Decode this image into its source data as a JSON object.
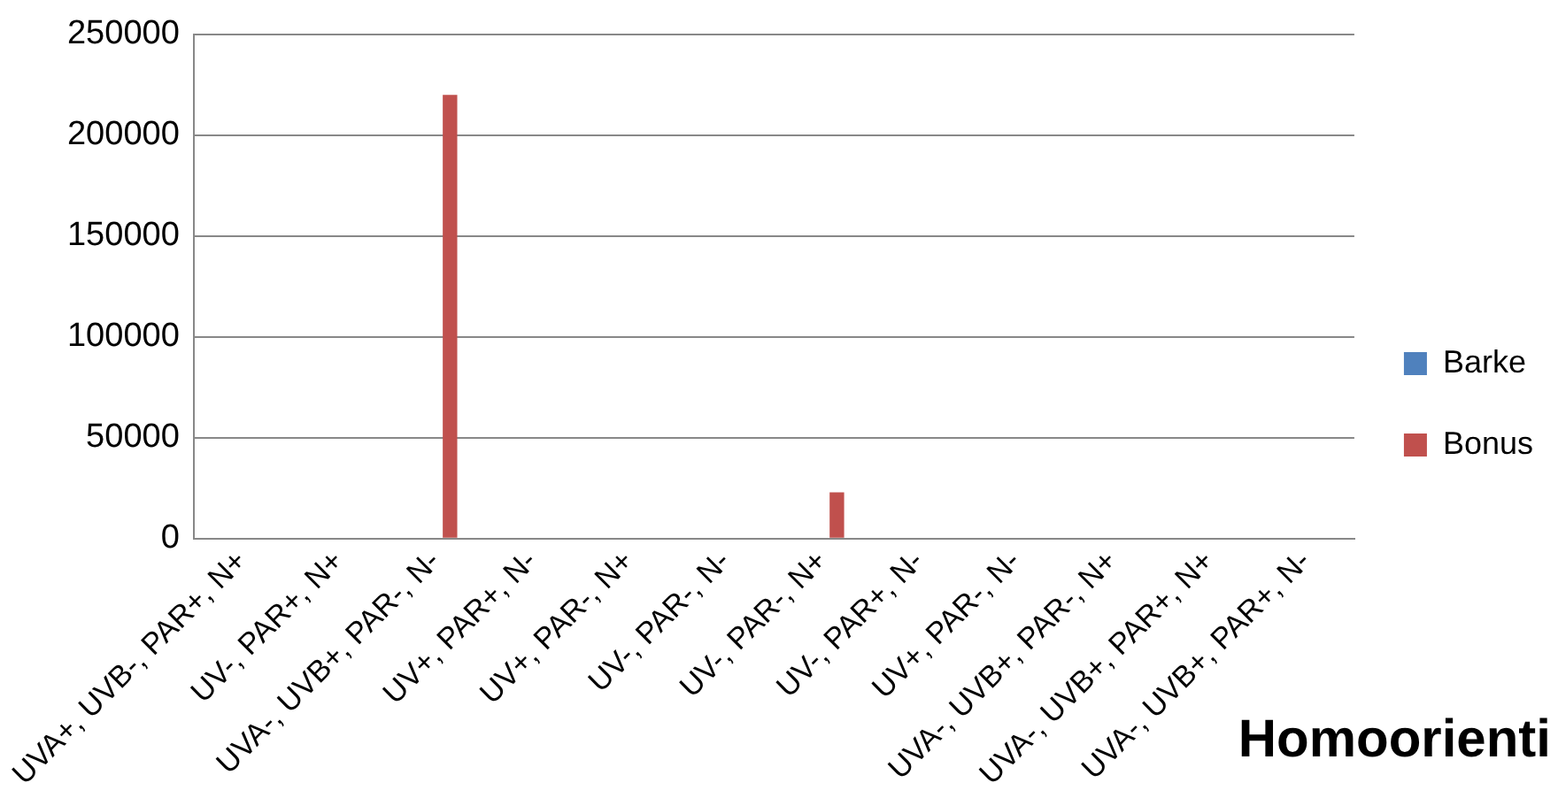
{
  "chart_data": {
    "type": "bar",
    "title": "Homoorienti",
    "categories": [
      "UVA+, UVB-, PAR+, N+",
      "UV-, PAR+, N+",
      "UVA-, UVB+, PAR-, N-",
      "UV+, PAR+, N-",
      "UV+, PAR-, N+",
      "UV-, PAR-, N-",
      "UV-, PAR-, N+",
      "UV-, PAR+, N-",
      "UV+, PAR-, N-",
      "UVA-, UVB+, PAR-, N+",
      "UVA-, UVB+, PAR+, N+",
      "UVA-, UVB+, PAR+, N-"
    ],
    "series": [
      {
        "name": "Barke",
        "color": "#4f81bd",
        "values": [
          0,
          0,
          0,
          0,
          0,
          0,
          0,
          0,
          0,
          0,
          0,
          0
        ]
      },
      {
        "name": "Bonus",
        "color": "#c0504d",
        "values": [
          0,
          0,
          220000,
          0,
          0,
          0,
          23000,
          0,
          0,
          0,
          0,
          0
        ]
      }
    ],
    "ylim": [
      0,
      250000
    ],
    "yticks": [
      0,
      50000,
      100000,
      150000,
      200000,
      250000
    ],
    "grid": "y",
    "legend": "right"
  }
}
